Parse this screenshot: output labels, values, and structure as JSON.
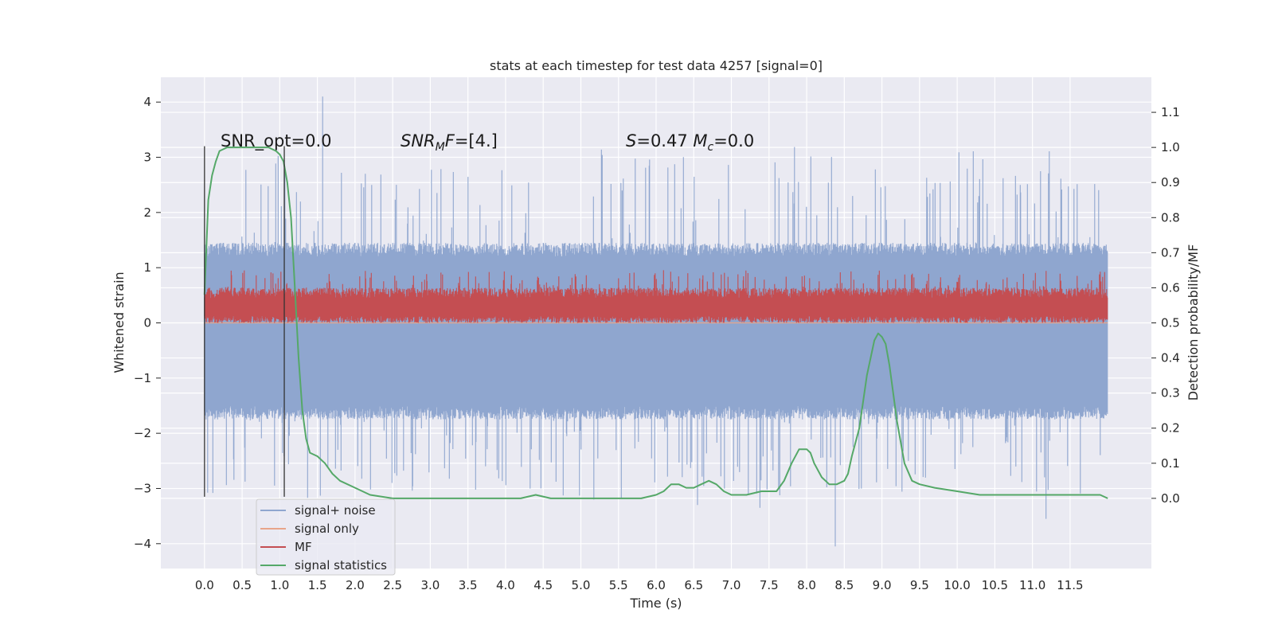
{
  "chart_data": {
    "type": "line",
    "title": "stats at each timestep for test data 4257 [signal=0]",
    "xlabel": "Time (s)",
    "ylabel_left": "Whitened strain",
    "ylabel_right": "Detection probability/MF",
    "xlim": [
      -0.58,
      12.58
    ],
    "ylim_left": [
      -4.45,
      4.45
    ],
    "ylim_right": [
      -0.2,
      1.2
    ],
    "x_ticks": [
      "0.0",
      "0.5",
      "1.0",
      "1.5",
      "2.0",
      "2.5",
      "3.0",
      "3.5",
      "4.0",
      "4.5",
      "5.0",
      "5.5",
      "6.0",
      "6.5",
      "7.0",
      "7.5",
      "8.0",
      "8.5",
      "9.0",
      "9.5",
      "10.0",
      "10.5",
      "11.0",
      "11.5"
    ],
    "x_tick_values": [
      0,
      0.5,
      1,
      1.5,
      2,
      2.5,
      3,
      3.5,
      4,
      4.5,
      5,
      5.5,
      6,
      6.5,
      7,
      7.5,
      8,
      8.5,
      9,
      9.5,
      10,
      10.5,
      11,
      11.5
    ],
    "y_left_ticks": [
      "−4",
      "−3",
      "−2",
      "−1",
      "0",
      "1",
      "2",
      "3",
      "4"
    ],
    "y_left_tick_values": [
      -4,
      -3,
      -2,
      -1,
      0,
      1,
      2,
      3,
      4
    ],
    "y_right_ticks": [
      "0.0",
      "0.1",
      "0.2",
      "0.3",
      "0.4",
      "0.5",
      "0.6",
      "0.7",
      "0.8",
      "0.9",
      "1.0",
      "1.1"
    ],
    "y_right_tick_values": [
      0,
      0.1,
      0.2,
      0.3,
      0.4,
      0.5,
      0.6,
      0.7,
      0.8,
      0.9,
      1.0,
      1.1
    ],
    "grid": true,
    "legend_position": "lower-left",
    "legend": [
      "signal+ noise",
      "signal only",
      "MF",
      "signal statistics"
    ],
    "annotations": [
      {
        "text": "SNR_opt=0.0",
        "x": 0.2,
        "y": 3.3
      },
      {
        "text": "SNR_M F=[4.]",
        "x": 2.6,
        "y": 3.3
      },
      {
        "text": "S=0.47   M_c=0.0",
        "x": 5.6,
        "y": 3.3
      }
    ],
    "vlines": [
      {
        "x": 0.0,
        "ymin": -3.15,
        "ymax": 3.2
      },
      {
        "x": 1.06,
        "ymin": -3.15,
        "ymax": 3.2
      }
    ],
    "series": [
      {
        "name": "signal+ noise",
        "axis": "left",
        "kind": "noise_band",
        "x_range": [
          0,
          12.0
        ],
        "band_low_typical": -1.6,
        "band_high_typical": 1.3,
        "peaks_max": 4.1,
        "peaks_min": -4.05,
        "color": "#8fa6cf"
      },
      {
        "name": "signal only",
        "axis": "left",
        "x": [
          0,
          12.0
        ],
        "y": [
          0,
          0
        ],
        "color": "#e8a58a"
      },
      {
        "name": "MF",
        "axis": "right",
        "kind": "noise_band",
        "x_range": [
          0,
          12.0
        ],
        "band_low_typical": 0.51,
        "band_high_typical": 0.58,
        "peaks_max": 0.65,
        "peaks_min": 0.5,
        "color": "#c44e52"
      },
      {
        "name": "signal statistics",
        "axis": "right",
        "color": "#55a868",
        "x": [
          0.0,
          0.05,
          0.1,
          0.15,
          0.2,
          0.3,
          0.5,
          0.7,
          0.85,
          0.95,
          1.0,
          1.05,
          1.1,
          1.15,
          1.2,
          1.25,
          1.3,
          1.35,
          1.4,
          1.5,
          1.6,
          1.7,
          1.8,
          2.0,
          2.2,
          2.5,
          3.0,
          3.5,
          4.0,
          4.2,
          4.4,
          4.6,
          5.0,
          5.5,
          5.8,
          6.0,
          6.1,
          6.2,
          6.3,
          6.4,
          6.5,
          6.6,
          6.7,
          6.8,
          6.9,
          7.0,
          7.2,
          7.4,
          7.6,
          7.7,
          7.8,
          7.9,
          8.0,
          8.05,
          8.1,
          8.2,
          8.3,
          8.4,
          8.5,
          8.55,
          8.6,
          8.7,
          8.8,
          8.9,
          8.95,
          9.0,
          9.05,
          9.1,
          9.2,
          9.3,
          9.4,
          9.5,
          9.7,
          10.0,
          10.3,
          10.6,
          11.0,
          11.3,
          11.6,
          11.9,
          12.0
        ],
        "y": [
          0.58,
          0.85,
          0.92,
          0.96,
          0.99,
          1.0,
          1.0,
          1.0,
          1.0,
          0.99,
          0.98,
          0.96,
          0.9,
          0.8,
          0.6,
          0.4,
          0.25,
          0.17,
          0.13,
          0.12,
          0.1,
          0.07,
          0.05,
          0.03,
          0.01,
          0.0,
          0.0,
          0.0,
          0.0,
          0.0,
          0.01,
          0.0,
          0.0,
          0.0,
          0.0,
          0.01,
          0.02,
          0.04,
          0.04,
          0.03,
          0.03,
          0.04,
          0.05,
          0.04,
          0.02,
          0.01,
          0.01,
          0.02,
          0.02,
          0.05,
          0.1,
          0.14,
          0.14,
          0.13,
          0.1,
          0.06,
          0.04,
          0.04,
          0.05,
          0.07,
          0.12,
          0.2,
          0.35,
          0.45,
          0.47,
          0.46,
          0.44,
          0.38,
          0.22,
          0.1,
          0.05,
          0.04,
          0.03,
          0.02,
          0.01,
          0.01,
          0.01,
          0.01,
          0.01,
          0.01,
          0.0
        ]
      }
    ]
  }
}
